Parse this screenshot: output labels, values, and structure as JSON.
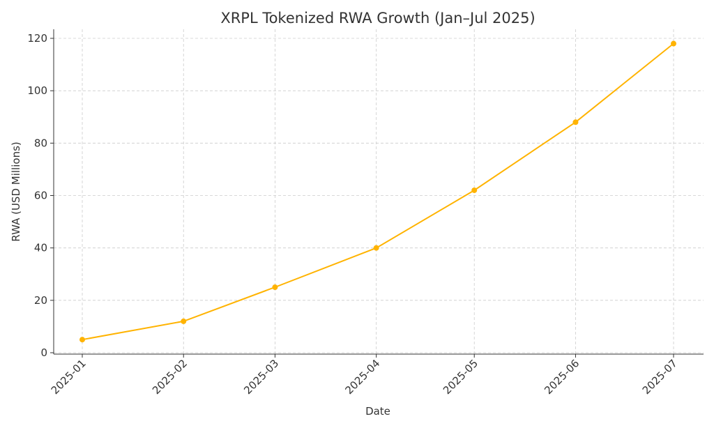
{
  "chart_data": {
    "type": "line",
    "title": "XRPL Tokenized RWA Growth (Jan–Jul 2025)",
    "xlabel": "Date",
    "ylabel": "RWA (USD Millions)",
    "x": [
      "2025-01",
      "2025-02",
      "2025-03",
      "2025-04",
      "2025-05",
      "2025-06",
      "2025-07"
    ],
    "x_days": [
      0,
      31,
      59,
      90,
      120,
      151,
      181
    ],
    "series": [
      {
        "name": "",
        "values": [
          5,
          12,
          25,
          40,
          62,
          88,
          118
        ],
        "color": "#FFB300"
      }
    ],
    "yticks": [
      0,
      20,
      40,
      60,
      80,
      100,
      120
    ],
    "ylim": [
      0,
      120
    ],
    "grid": true,
    "marker": "circle"
  }
}
